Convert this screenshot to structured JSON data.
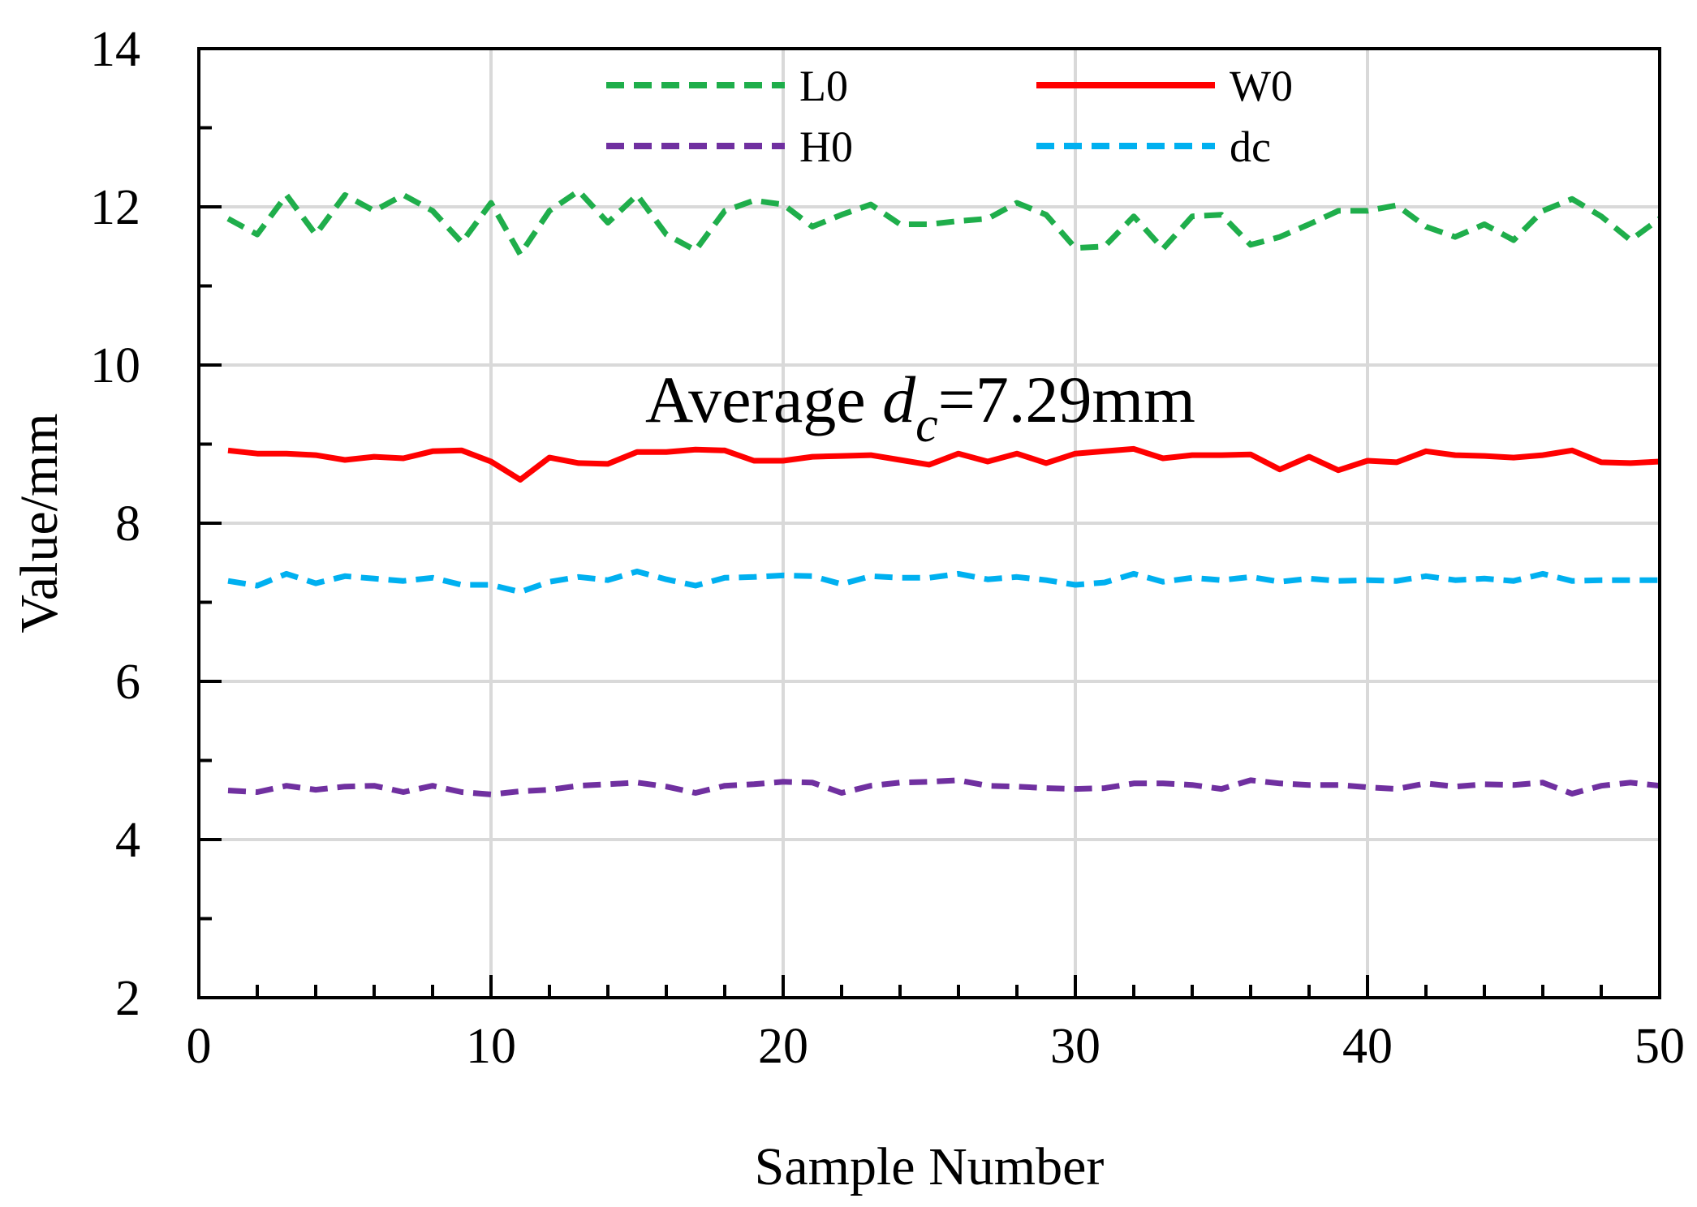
{
  "chart_data": {
    "type": "line",
    "title": "",
    "xlabel": "Sample Number",
    "ylabel": "Value/mm",
    "xlim": [
      0,
      50
    ],
    "ylim": [
      2,
      14
    ],
    "xticks": [
      0,
      10,
      20,
      30,
      40,
      50
    ],
    "yticks": [
      2,
      4,
      6,
      8,
      10,
      12,
      14
    ],
    "x_minor_step": 2,
    "y_minor_step": 1,
    "grid": true,
    "legend_position": "top",
    "annotation": {
      "prefix": "Average ",
      "symbol": "d",
      "subscript": "c",
      "suffix": "=7.29mm"
    },
    "x": [
      1,
      2,
      3,
      4,
      5,
      6,
      7,
      8,
      9,
      10,
      11,
      12,
      13,
      14,
      15,
      16,
      17,
      18,
      19,
      20,
      21,
      22,
      23,
      24,
      25,
      26,
      27,
      28,
      29,
      30,
      31,
      32,
      33,
      34,
      35,
      36,
      37,
      38,
      39,
      40,
      41,
      42,
      43,
      44,
      45,
      46,
      47,
      48,
      49,
      50
    ],
    "series": [
      {
        "name": "L0",
        "color": "#1fae4b",
        "style": "dashed",
        "values": [
          11.85,
          11.65,
          12.15,
          11.65,
          12.15,
          11.95,
          12.15,
          11.95,
          11.55,
          12.05,
          11.4,
          11.95,
          12.2,
          11.8,
          12.15,
          11.65,
          11.45,
          11.95,
          12.08,
          12.03,
          11.75,
          11.9,
          12.03,
          11.78,
          11.78,
          11.82,
          11.85,
          12.05,
          11.9,
          11.48,
          11.5,
          11.88,
          11.47,
          11.88,
          11.9,
          11.52,
          11.62,
          11.78,
          11.95,
          11.95,
          12.02,
          11.75,
          11.62,
          11.78,
          11.58,
          11.95,
          12.1,
          11.88,
          11.58,
          11.85
        ]
      },
      {
        "name": "W0",
        "color": "#ff0000",
        "style": "solid",
        "values": [
          8.92,
          8.88,
          8.88,
          8.86,
          8.8,
          8.84,
          8.82,
          8.91,
          8.92,
          8.78,
          8.55,
          8.83,
          8.76,
          8.75,
          8.9,
          8.9,
          8.93,
          8.92,
          8.79,
          8.79,
          8.84,
          8.85,
          8.86,
          8.8,
          8.74,
          8.88,
          8.78,
          8.88,
          8.76,
          8.88,
          8.91,
          8.94,
          8.82,
          8.86,
          8.86,
          8.87,
          8.68,
          8.84,
          8.67,
          8.79,
          8.77,
          8.91,
          8.86,
          8.85,
          8.83,
          8.86,
          8.92,
          8.77,
          8.76,
          8.78
        ]
      },
      {
        "name": "H0",
        "color": "#7030a0",
        "style": "dashed",
        "values": [
          4.62,
          4.6,
          4.68,
          4.63,
          4.67,
          4.68,
          4.6,
          4.68,
          4.6,
          4.57,
          4.61,
          4.63,
          4.68,
          4.7,
          4.72,
          4.67,
          4.59,
          4.68,
          4.7,
          4.73,
          4.72,
          4.59,
          4.68,
          4.72,
          4.73,
          4.75,
          4.68,
          4.67,
          4.65,
          4.64,
          4.65,
          4.71,
          4.71,
          4.69,
          4.64,
          4.75,
          4.71,
          4.69,
          4.69,
          4.66,
          4.64,
          4.71,
          4.67,
          4.7,
          4.69,
          4.72,
          4.58,
          4.68,
          4.72,
          4.68
        ]
      },
      {
        "name": "dc",
        "color": "#00b0f0",
        "style": "dashed",
        "values": [
          7.27,
          7.21,
          7.36,
          7.24,
          7.33,
          7.3,
          7.27,
          7.31,
          7.22,
          7.22,
          7.13,
          7.26,
          7.32,
          7.28,
          7.39,
          7.29,
          7.21,
          7.31,
          7.32,
          7.34,
          7.33,
          7.23,
          7.33,
          7.31,
          7.31,
          7.36,
          7.29,
          7.32,
          7.28,
          7.22,
          7.25,
          7.36,
          7.26,
          7.31,
          7.28,
          7.32,
          7.26,
          7.3,
          7.27,
          7.28,
          7.27,
          7.33,
          7.28,
          7.3,
          7.27,
          7.36,
          7.27,
          7.28,
          7.28,
          7.28
        ]
      }
    ]
  }
}
